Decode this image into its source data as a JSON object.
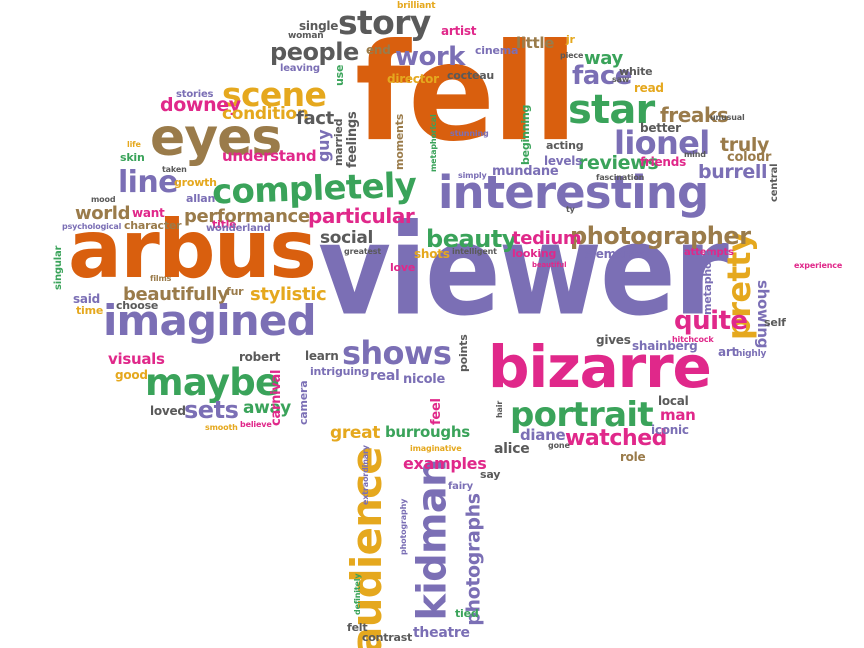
{
  "palette": {
    "orange": "#d95f0e",
    "purple": "#7b6fb5",
    "green": "#3aa35a",
    "magenta": "#e0288a",
    "gold": "#e5a81e",
    "brown": "#9a7b4a",
    "gray": "#5a5a5a"
  },
  "words": [
    {
      "text": "fell",
      "color": "orange"
    },
    {
      "text": "viewer",
      "color": "purple"
    },
    {
      "text": "arbus",
      "color": "orange"
    },
    {
      "text": "interesting",
      "color": "purple"
    },
    {
      "text": "bizarre",
      "color": "magenta"
    },
    {
      "text": "eyes",
      "color": "brown"
    },
    {
      "text": "imagined",
      "color": "purple"
    },
    {
      "text": "completely",
      "color": "green"
    },
    {
      "text": "story",
      "color": "gray"
    },
    {
      "text": "audience",
      "color": "gold"
    },
    {
      "text": "kidman",
      "color": "purple"
    },
    {
      "text": "portrait",
      "color": "green"
    },
    {
      "text": "maybe",
      "color": "green"
    },
    {
      "text": "star",
      "color": "green"
    },
    {
      "text": "lionel",
      "color": "purple"
    },
    {
      "text": "shows",
      "color": "purple"
    },
    {
      "text": "scene",
      "color": "gold"
    },
    {
      "text": "pretty",
      "color": "gold"
    },
    {
      "text": "people",
      "color": "gray"
    },
    {
      "text": "work",
      "color": "purple"
    },
    {
      "text": "photographer",
      "color": "brown"
    },
    {
      "text": "quite",
      "color": "magenta"
    },
    {
      "text": "beauty",
      "color": "green"
    },
    {
      "text": "particular",
      "color": "magenta"
    },
    {
      "text": "line",
      "color": "purple"
    },
    {
      "text": "sets",
      "color": "purple"
    },
    {
      "text": "photographs",
      "color": "purple"
    },
    {
      "text": "watched",
      "color": "magenta"
    },
    {
      "text": "face",
      "color": "purple"
    },
    {
      "text": "tedium",
      "color": "magenta"
    },
    {
      "text": "beautifully",
      "color": "brown"
    },
    {
      "text": "performance",
      "color": "brown"
    },
    {
      "text": "social",
      "color": "gray"
    },
    {
      "text": "stylistic",
      "color": "gold"
    },
    {
      "text": "world",
      "color": "brown"
    },
    {
      "text": "downey",
      "color": "magenta"
    },
    {
      "text": "condition",
      "color": "gold"
    },
    {
      "text": "fact",
      "color": "gray"
    },
    {
      "text": "reviews",
      "color": "green"
    },
    {
      "text": "freaks",
      "color": "brown"
    },
    {
      "text": "truly",
      "color": "brown"
    },
    {
      "text": "burrell",
      "color": "purple"
    },
    {
      "text": "showing",
      "color": "purple"
    },
    {
      "text": "way",
      "color": "green"
    },
    {
      "text": "little",
      "color": "brown"
    },
    {
      "text": "examples",
      "color": "magenta"
    },
    {
      "text": "theatre",
      "color": "purple"
    },
    {
      "text": "visuals",
      "color": "magenta"
    },
    {
      "text": "away",
      "color": "green"
    },
    {
      "text": "carnival",
      "color": "magenta"
    },
    {
      "text": "great",
      "color": "gold"
    },
    {
      "text": "burroughs",
      "color": "green"
    },
    {
      "text": "diane",
      "color": "purple"
    },
    {
      "text": "alice",
      "color": "gray"
    },
    {
      "text": "man",
      "color": "magenta"
    },
    {
      "text": "iconic",
      "color": "purple"
    },
    {
      "text": "understand",
      "color": "magenta"
    },
    {
      "text": "guy",
      "color": "purple"
    },
    {
      "text": "married",
      "color": "gray"
    },
    {
      "text": "feelings",
      "color": "gray"
    },
    {
      "text": "moments",
      "color": "brown"
    },
    {
      "text": "mundane",
      "color": "purple"
    },
    {
      "text": "beginning",
      "color": "green"
    },
    {
      "text": "acting",
      "color": "gray"
    },
    {
      "text": "levels",
      "color": "purple"
    },
    {
      "text": "better",
      "color": "gray"
    },
    {
      "text": "colour",
      "color": "brown"
    },
    {
      "text": "friends",
      "color": "magenta"
    },
    {
      "text": "read",
      "color": "gold"
    },
    {
      "text": "white",
      "color": "gray"
    },
    {
      "text": "director",
      "color": "gold"
    },
    {
      "text": "cocteau",
      "color": "gray"
    },
    {
      "text": "cinema",
      "color": "purple"
    },
    {
      "text": "artist",
      "color": "magenta"
    },
    {
      "text": "single",
      "color": "gray"
    },
    {
      "text": "end",
      "color": "brown"
    },
    {
      "text": "leaving",
      "color": "purple"
    },
    {
      "text": "use",
      "color": "green"
    },
    {
      "text": "woman",
      "color": "gray"
    },
    {
      "text": "brilliant",
      "color": "gold"
    },
    {
      "text": "jr",
      "color": "gold"
    },
    {
      "text": "piece",
      "color": "gray"
    },
    {
      "text": "stories",
      "color": "purple"
    },
    {
      "text": "skin",
      "color": "green"
    },
    {
      "text": "growth",
      "color": "gold"
    },
    {
      "text": "allan",
      "color": "purple"
    },
    {
      "text": "character",
      "color": "brown"
    },
    {
      "text": "want",
      "color": "magenta"
    },
    {
      "text": "title",
      "color": "magenta"
    },
    {
      "text": "wonderland",
      "color": "purple"
    },
    {
      "text": "psychological",
      "color": "purple"
    },
    {
      "text": "singular",
      "color": "green"
    },
    {
      "text": "said",
      "color": "purple"
    },
    {
      "text": "time",
      "color": "gold"
    },
    {
      "text": "choose",
      "color": "gray"
    },
    {
      "text": "fur",
      "color": "brown"
    },
    {
      "text": "greatest",
      "color": "gray"
    },
    {
      "text": "love",
      "color": "magenta"
    },
    {
      "text": "shots",
      "color": "gold"
    },
    {
      "text": "intelligent",
      "color": "gray"
    },
    {
      "text": "looking",
      "color": "magenta"
    },
    {
      "text": "elements",
      "color": "purple"
    },
    {
      "text": "attempts",
      "color": "magenta"
    },
    {
      "text": "metaphors",
      "color": "purple"
    },
    {
      "text": "experience",
      "color": "magenta"
    },
    {
      "text": "self",
      "color": "gray"
    },
    {
      "text": "hitchcock",
      "color": "magenta"
    },
    {
      "text": "art",
      "color": "purple"
    },
    {
      "text": "highly",
      "color": "purple"
    },
    {
      "text": "robert",
      "color": "gray"
    },
    {
      "text": "learn",
      "color": "gray"
    },
    {
      "text": "intriguing",
      "color": "purple"
    },
    {
      "text": "real",
      "color": "purple"
    },
    {
      "text": "nicole",
      "color": "purple"
    },
    {
      "text": "points",
      "color": "gray"
    },
    {
      "text": "gives",
      "color": "gray"
    },
    {
      "text": "shainberg",
      "color": "purple"
    },
    {
      "text": "local",
      "color": "gray"
    },
    {
      "text": "good",
      "color": "gold"
    },
    {
      "text": "loved",
      "color": "gray"
    },
    {
      "text": "smooth",
      "color": "gold"
    },
    {
      "text": "believe",
      "color": "magenta"
    },
    {
      "text": "camera",
      "color": "purple"
    },
    {
      "text": "feel",
      "color": "magenta"
    },
    {
      "text": "hair",
      "color": "gray"
    },
    {
      "text": "say",
      "color": "gray"
    },
    {
      "text": "gone",
      "color": "gray"
    },
    {
      "text": "role",
      "color": "brown"
    },
    {
      "text": "imaginative",
      "color": "gold"
    },
    {
      "text": "fairy",
      "color": "purple"
    },
    {
      "text": "extraordinary",
      "color": "purple"
    },
    {
      "text": "photography",
      "color": "purple"
    },
    {
      "text": "definitely",
      "color": "green"
    },
    {
      "text": "felt",
      "color": "gray"
    },
    {
      "text": "contrast",
      "color": "gray"
    },
    {
      "text": "tied",
      "color": "green"
    },
    {
      "text": "simply",
      "color": "purple"
    },
    {
      "text": "stunning",
      "color": "purple"
    },
    {
      "text": "fascination",
      "color": "gray"
    },
    {
      "text": "unusual",
      "color": "gray"
    },
    {
      "text": "mind",
      "color": "gray"
    },
    {
      "text": "central",
      "color": "gray"
    },
    {
      "text": "ty",
      "color": "gray"
    },
    {
      "text": "beautiful",
      "color": "magenta"
    },
    {
      "text": "films",
      "color": "brown"
    },
    {
      "text": "taken",
      "color": "gray"
    },
    {
      "text": "life",
      "color": "gold"
    },
    {
      "text": "mood",
      "color": "gray"
    },
    {
      "text": "metaphorical",
      "color": "green"
    },
    {
      "text": "saw",
      "color": "gray"
    }
  ]
}
